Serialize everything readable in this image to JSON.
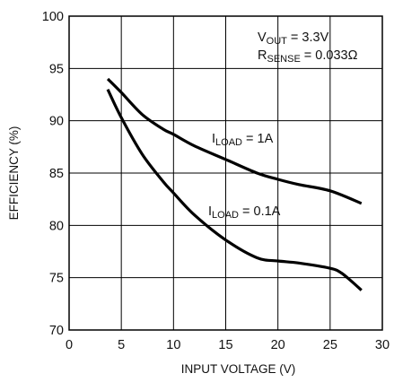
{
  "chart_data": {
    "type": "line",
    "title": "",
    "xlabel": "INPUT VOLTAGE (V)",
    "ylabel": "EFFICIENCY (%)",
    "xlim": [
      0,
      30
    ],
    "ylim": [
      70,
      100
    ],
    "x_ticks": [
      0,
      5,
      10,
      15,
      20,
      25,
      30
    ],
    "y_ticks": [
      70,
      75,
      80,
      85,
      90,
      95,
      100
    ],
    "x_tick_labels": [
      "0",
      "5",
      "10",
      "15",
      "20",
      "25",
      "30"
    ],
    "y_tick_labels": [
      "70",
      "75",
      "80",
      "85",
      "90",
      "95",
      "100"
    ],
    "grid": true,
    "line_color": "#000000",
    "series": [
      {
        "name": "ILOAD = 1A",
        "x": [
          3.7,
          5,
          7,
          9,
          10,
          12,
          15,
          18,
          20,
          22,
          25,
          28
        ],
        "y": [
          94.0,
          92.7,
          90.6,
          89.2,
          88.7,
          87.6,
          86.3,
          85.0,
          84.4,
          83.9,
          83.3,
          82.1
        ]
      },
      {
        "name": "ILOAD = 0.1A",
        "x": [
          3.7,
          5,
          7,
          9,
          10,
          12,
          15,
          18,
          20,
          22,
          25,
          26,
          27,
          28
        ],
        "y": [
          93.0,
          90.3,
          86.8,
          84.2,
          83.1,
          81.0,
          78.6,
          76.9,
          76.6,
          76.4,
          75.9,
          75.5,
          74.7,
          73.8
        ]
      }
    ],
    "annotations": {
      "conditions": [
        {
          "main": "V",
          "sub": "OUT",
          "rest": " = 3.3V"
        },
        {
          "main": "R",
          "sub": "SENSE",
          "rest": " = 0.033Ω"
        }
      ],
      "series_labels": [
        {
          "main": "I",
          "sub": "LOAD",
          "rest": " = 1A"
        },
        {
          "main": "I",
          "sub": "LOAD",
          "rest": " = 0.1A"
        }
      ]
    }
  }
}
